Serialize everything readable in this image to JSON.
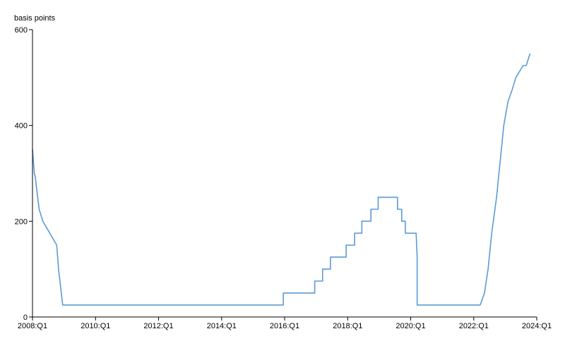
{
  "chart_data": {
    "type": "line",
    "ylabel": "basis points",
    "ylim": [
      0,
      600
    ],
    "yticks": [
      0,
      200,
      400,
      600
    ],
    "xlim": [
      "2008:Q1",
      "2024:Q1"
    ],
    "xticks": [
      "2008:Q1",
      "2010:Q1",
      "2012:Q1",
      "2014:Q1",
      "2016:Q1",
      "2018:Q1",
      "2020:Q1",
      "2022:Q1",
      "2024:Q1"
    ],
    "grid": false,
    "legend": "none",
    "series": [
      {
        "color": "#5b9bd5",
        "points": [
          [
            "2008-01-01",
            350
          ],
          [
            "2008-01-22",
            300
          ],
          [
            "2008-02-01",
            294
          ],
          [
            "2008-03-18",
            225
          ],
          [
            "2008-04-30",
            200
          ],
          [
            "2008-10-08",
            150
          ],
          [
            "2008-10-29",
            100
          ],
          [
            "2008-12-16",
            25
          ],
          [
            "2015-12-17",
            25
          ],
          [
            "2015-12-17",
            50
          ],
          [
            "2016-12-15",
            50
          ],
          [
            "2016-12-15",
            75
          ],
          [
            "2017-03-16",
            75
          ],
          [
            "2017-03-16",
            100
          ],
          [
            "2017-06-15",
            100
          ],
          [
            "2017-06-15",
            125
          ],
          [
            "2017-12-14",
            125
          ],
          [
            "2017-12-14",
            150
          ],
          [
            "2018-03-22",
            150
          ],
          [
            "2018-03-22",
            175
          ],
          [
            "2018-06-14",
            175
          ],
          [
            "2018-06-14",
            200
          ],
          [
            "2018-09-27",
            200
          ],
          [
            "2018-09-27",
            225
          ],
          [
            "2018-12-20",
            225
          ],
          [
            "2018-12-20",
            250
          ],
          [
            "2019-08-01",
            250
          ],
          [
            "2019-08-01",
            225
          ],
          [
            "2019-09-19",
            225
          ],
          [
            "2019-09-19",
            200
          ],
          [
            "2019-10-31",
            200
          ],
          [
            "2019-10-31",
            175
          ],
          [
            "2020-03-04",
            175
          ],
          [
            "2020-03-16",
            125
          ],
          [
            "2020-03-16",
            25
          ],
          [
            "2022-03-17",
            25
          ],
          [
            "2022-05-05",
            50
          ],
          [
            "2022-06-16",
            100
          ],
          [
            "2022-07-28",
            175
          ],
          [
            "2022-09-22",
            250
          ],
          [
            "2022-11-03",
            325
          ],
          [
            "2022-12-15",
            400
          ],
          [
            "2023-02-02",
            450
          ],
          [
            "2023-03-23",
            475
          ],
          [
            "2023-05-04",
            500
          ],
          [
            "2023-07-27",
            525
          ],
          [
            "2023-09-01",
            525
          ],
          [
            "2023-10-15",
            550
          ]
        ]
      }
    ]
  }
}
